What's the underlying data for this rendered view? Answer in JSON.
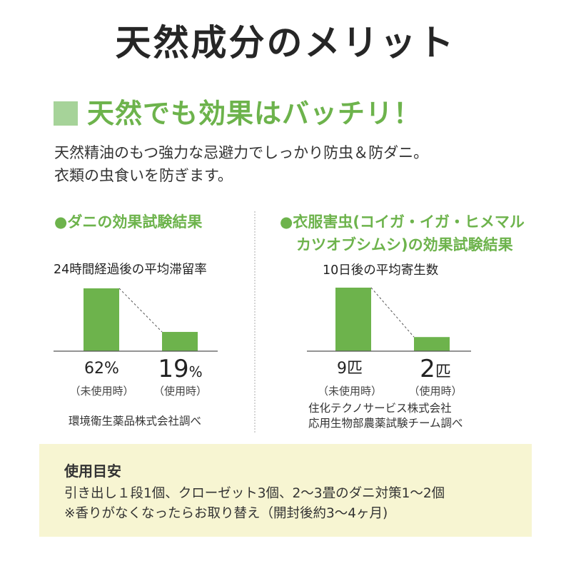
{
  "title": "天然成分のメリット",
  "subtitle": "天然でも効果はバッチリ！",
  "intro": [
    "天然精油のもつ強力な忌避力でしっかり防虫＆防ダニ。",
    "衣類の虫食いを防ぎます。"
  ],
  "colors": {
    "accent": "#6db34c",
    "accent_light": "#a6d399",
    "usage_bg": "#f7f5d2",
    "text": "#2b2b2b"
  },
  "chart_data": [
    {
      "type": "bar",
      "heading": "●ダニの効果試験結果",
      "title": "24時間経過後の平均滞留率",
      "categories": [
        "未使用時",
        "使用時"
      ],
      "values": [
        62,
        19
      ],
      "unit": "%",
      "value_labels": [
        "62%",
        "19%"
      ],
      "captions": [
        "（未使用時）",
        "（使用時）"
      ],
      "source": [
        "環境衛生薬品株式会社調べ"
      ]
    },
    {
      "type": "bar",
      "heading": [
        "●衣服害虫(コイガ・イガ・ヒメマル",
        "カツオブシムシ)の効果試験結果"
      ],
      "title": "10日後の平均寄生数",
      "categories": [
        "未使用時",
        "使用時"
      ],
      "values": [
        9,
        2
      ],
      "unit": "匹",
      "value_labels": [
        "9匹",
        "2匹"
      ],
      "captions": [
        "（未使用時）",
        "（使用時）"
      ],
      "source": [
        "住化テクノサービス株式会社",
        "応用生物部農薬試験チーム調べ"
      ]
    }
  ],
  "usage": {
    "heading": "使用目安",
    "lines": [
      "引き出し１段1個、クローゼット3個、2～3畳のダニ対策1～2個",
      "※香りがなくなったらお取り替え（開封後約3～4ヶ月)"
    ]
  }
}
